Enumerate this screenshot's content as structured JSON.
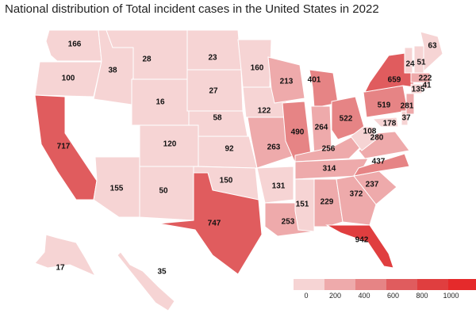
{
  "title": "National distribution of Total incident cases in the United States in 2022",
  "legend": {
    "ticks": [
      "0",
      "200",
      "400",
      "600",
      "800",
      "1000"
    ],
    "colors": [
      "#f6d4d4",
      "#eeaaab",
      "#e68485",
      "#e05c5e",
      "#e03e3f",
      "#e52a2b"
    ]
  },
  "map_data": {
    "type": "choropleth",
    "region": "United States",
    "year": "2022",
    "states": [
      {
        "state": "WA",
        "value": "166"
      },
      {
        "state": "OR",
        "value": "100"
      },
      {
        "state": "CA",
        "value": "717"
      },
      {
        "state": "ID",
        "value": "38"
      },
      {
        "state": "MT",
        "value": "28"
      },
      {
        "state": "WY",
        "value": "16"
      },
      {
        "state": "ND",
        "value": "23"
      },
      {
        "state": "SD",
        "value": "27"
      },
      {
        "state": "NE",
        "value": "58"
      },
      {
        "state": "CO",
        "value": "120"
      },
      {
        "state": "KS",
        "value": "92"
      },
      {
        "state": "AZ",
        "value": "155"
      },
      {
        "state": "NM",
        "value": "50"
      },
      {
        "state": "OK",
        "value": "150"
      },
      {
        "state": "TX",
        "value": "747"
      },
      {
        "state": "MN",
        "value": "160"
      },
      {
        "state": "IA",
        "value": "122"
      },
      {
        "state": "MO",
        "value": "263"
      },
      {
        "state": "AR",
        "value": "131"
      },
      {
        "state": "LA",
        "value": "253"
      },
      {
        "state": "WI",
        "value": "213"
      },
      {
        "state": "IL",
        "value": "490"
      },
      {
        "state": "MI",
        "value": "401"
      },
      {
        "state": "IN",
        "value": "264"
      },
      {
        "state": "OH",
        "value": "522"
      },
      {
        "state": "KY",
        "value": "256"
      },
      {
        "state": "TN",
        "value": "314"
      },
      {
        "state": "MS",
        "value": "151"
      },
      {
        "state": "AL",
        "value": "229"
      },
      {
        "state": "GA",
        "value": "372"
      },
      {
        "state": "FL",
        "value": "942"
      },
      {
        "state": "SC",
        "value": "237"
      },
      {
        "state": "NC",
        "value": "437"
      },
      {
        "state": "VA",
        "value": "280"
      },
      {
        "state": "WV",
        "value": "108"
      },
      {
        "state": "PA",
        "value": "519"
      },
      {
        "state": "NY",
        "value": "659"
      },
      {
        "state": "MD",
        "value": "178"
      },
      {
        "state": "DE",
        "value": "37"
      },
      {
        "state": "NJ",
        "value": "281"
      },
      {
        "state": "CT",
        "value": "135"
      },
      {
        "state": "RI",
        "value": "41"
      },
      {
        "state": "MA",
        "value": "222"
      },
      {
        "state": "VT",
        "value": "24"
      },
      {
        "state": "NH",
        "value": "51"
      },
      {
        "state": "ME",
        "value": "63"
      },
      {
        "state": "AK",
        "value": "17"
      },
      {
        "state": "HI",
        "value": "35"
      }
    ]
  }
}
